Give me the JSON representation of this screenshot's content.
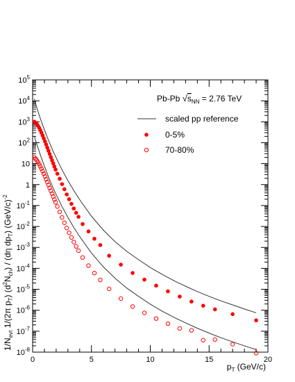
{
  "chart_data": {
    "type": "scatter",
    "xlabel": "p_T (GeV/c)",
    "ylabel": "1/N_evt 1/(2π p_T) (d²N_ch) / (dη dp_T) (GeV/c)^-2",
    "xlim": [
      0,
      20
    ],
    "ylim": [
      1e-08,
      100000.0
    ],
    "yscale": "log",
    "x_ticks": [
      0,
      5,
      10,
      15,
      20
    ],
    "y_ticks": [
      {
        "mant": "10",
        "exp": "-8",
        "v": 1e-08
      },
      {
        "mant": "10",
        "exp": "-7",
        "v": 1e-07
      },
      {
        "mant": "10",
        "exp": "-6",
        "v": 1e-06
      },
      {
        "mant": "10",
        "exp": "-5",
        "v": 1e-05
      },
      {
        "mant": "10",
        "exp": "-4",
        "v": 0.0001
      },
      {
        "mant": "10",
        "exp": "-3",
        "v": 0.001
      },
      {
        "mant": "10",
        "exp": "-2",
        "v": 0.01
      },
      {
        "mant": "10",
        "exp": "-1",
        "v": 0.1
      },
      {
        "mant": "1",
        "exp": "",
        "v": 1
      },
      {
        "mant": "10",
        "exp": "",
        "v": 10
      },
      {
        "mant": "10",
        "exp": "2",
        "v": 100.0
      },
      {
        "mant": "10",
        "exp": "3",
        "v": 1000.0
      },
      {
        "mant": "10",
        "exp": "4",
        "v": 10000.0
      },
      {
        "mant": "10",
        "exp": "5",
        "v": 100000.0
      }
    ],
    "grid": false,
    "legend_position": "top-right",
    "annotation": "Pb-Pb √s_NN = 2.76 TeV",
    "series": [
      {
        "name": "0-5%",
        "marker": "filled-circle",
        "color": "#ff0000",
        "points": [
          [
            0.15,
            1000
          ],
          [
            0.25,
            900
          ],
          [
            0.35,
            780
          ],
          [
            0.45,
            650
          ],
          [
            0.55,
            520
          ],
          [
            0.65,
            400
          ],
          [
            0.75,
            300
          ],
          [
            0.85,
            220
          ],
          [
            0.95,
            160
          ],
          [
            1.05,
            115
          ],
          [
            1.15,
            82
          ],
          [
            1.25,
            58
          ],
          [
            1.35,
            41
          ],
          [
            1.45,
            29
          ],
          [
            1.55,
            20.5
          ],
          [
            1.65,
            14.5
          ],
          [
            1.75,
            10.3
          ],
          [
            1.85,
            7.3
          ],
          [
            1.95,
            5.2
          ],
          [
            2.1,
            3.3
          ],
          [
            2.3,
            1.9
          ],
          [
            2.5,
            1.05
          ],
          [
            2.7,
            0.6
          ],
          [
            2.9,
            0.34
          ],
          [
            3.1,
            0.2
          ],
          [
            3.3,
            0.12
          ],
          [
            3.5,
            0.072
          ],
          [
            3.7,
            0.045
          ],
          [
            3.9,
            0.029
          ],
          [
            4.25,
            0.013
          ],
          [
            4.75,
            0.0058
          ],
          [
            5.25,
            0.0026
          ],
          [
            5.75,
            0.0013
          ],
          [
            6.5,
            0.0004
          ],
          [
            7.5,
            0.00015
          ],
          [
            8.5,
            6e-05
          ],
          [
            9.5,
            2.9e-05
          ],
          [
            10.5,
            1.5e-05
          ],
          [
            11.5,
            8e-06
          ],
          [
            12.5,
            4.5e-06
          ],
          [
            13.5,
            2.6e-06
          ],
          [
            14.5,
            1.65e-06
          ],
          [
            15.5,
            1.1e-06
          ],
          [
            17.0,
            6.5e-07
          ],
          [
            19.0,
            3.3e-07
          ]
        ]
      },
      {
        "name": "70-80%",
        "marker": "open-circle",
        "color": "#ff0000",
        "points": [
          [
            0.15,
            20
          ],
          [
            0.25,
            17
          ],
          [
            0.35,
            14.5
          ],
          [
            0.45,
            12
          ],
          [
            0.55,
            9.6
          ],
          [
            0.65,
            7.5
          ],
          [
            0.75,
            5.8
          ],
          [
            0.85,
            4.4
          ],
          [
            0.95,
            3.3
          ],
          [
            1.05,
            2.45
          ],
          [
            1.15,
            1.8
          ],
          [
            1.25,
            1.32
          ],
          [
            1.35,
            0.96
          ],
          [
            1.45,
            0.7
          ],
          [
            1.55,
            0.51
          ],
          [
            1.65,
            0.37
          ],
          [
            1.75,
            0.27
          ],
          [
            1.85,
            0.195
          ],
          [
            1.95,
            0.143
          ],
          [
            2.1,
            0.09
          ],
          [
            2.3,
            0.05
          ],
          [
            2.5,
            0.027
          ],
          [
            2.7,
            0.015
          ],
          [
            2.9,
            0.0085
          ],
          [
            3.1,
            0.005
          ],
          [
            3.3,
            0.003
          ],
          [
            3.5,
            0.0018
          ],
          [
            3.7,
            0.00112
          ],
          [
            3.9,
            0.0007
          ],
          [
            4.25,
            0.00033
          ],
          [
            4.75,
            0.000135
          ],
          [
            5.25,
            6e-05
          ],
          [
            5.75,
            2.8e-05
          ],
          [
            6.5,
            1.05e-05
          ],
          [
            7.5,
            3.6e-06
          ],
          [
            8.5,
            1.5e-06
          ],
          [
            9.5,
            7.5e-07
          ],
          [
            10.5,
            4e-07
          ],
          [
            11.5,
            2.3e-07
          ],
          [
            12.5,
            1.35e-07
          ],
          [
            13.5,
            1.1e-07
          ],
          [
            14.5,
            3.7e-08
          ],
          [
            15.5,
            4e-08
          ],
          [
            17.0,
            2.4e-08
          ],
          [
            19.0,
            9e-09
          ]
        ]
      },
      {
        "name": "scaled pp reference",
        "marker": "line",
        "color": "#333333",
        "points": [
          [
            0.15,
            12500
          ],
          [
            0.3,
            6000
          ],
          [
            0.5,
            2600
          ],
          [
            0.75,
            1000
          ],
          [
            1.0,
            420
          ],
          [
            1.25,
            180
          ],
          [
            1.5,
            82
          ],
          [
            1.75,
            38
          ],
          [
            2.0,
            19
          ],
          [
            2.5,
            5.1
          ],
          [
            3.0,
            1.55
          ],
          [
            3.5,
            0.52
          ],
          [
            4.0,
            0.19
          ],
          [
            5.0,
            0.031
          ],
          [
            6.0,
            0.0068
          ],
          [
            7.0,
            0.0019
          ],
          [
            8.0,
            0.00065
          ],
          [
            9.0,
            0.00026
          ],
          [
            10.0,
            0.00011
          ],
          [
            11.0,
            5.2e-05
          ],
          [
            12.0,
            2.6e-05
          ],
          [
            13.0,
            1.4e-05
          ],
          [
            14.0,
            7.8e-06
          ],
          [
            15.0,
            4.6e-06
          ],
          [
            16.0,
            2.8e-06
          ],
          [
            17.0,
            1.8e-06
          ],
          [
            18.0,
            1.15e-06
          ],
          [
            19.0,
            7.5e-07
          ]
        ]
      },
      {
        "name": "",
        "marker": "line",
        "color": "#333333",
        "points": [
          [
            0.15,
            200
          ],
          [
            0.3,
            105
          ],
          [
            0.5,
            48
          ],
          [
            0.75,
            18.5
          ],
          [
            1.0,
            7.6
          ],
          [
            1.25,
            3.25
          ],
          [
            1.5,
            1.45
          ],
          [
            1.75,
            0.67
          ],
          [
            2.0,
            0.33
          ],
          [
            2.5,
            0.09
          ],
          [
            3.0,
            0.027
          ],
          [
            3.5,
            0.009
          ],
          [
            4.0,
            0.0033
          ],
          [
            5.0,
            0.00054
          ],
          [
            6.0,
            0.00012
          ],
          [
            7.0,
            3.4e-05
          ],
          [
            8.0,
            1.15e-05
          ],
          [
            9.0,
            4.6e-06
          ],
          [
            10.0,
            1.95e-06
          ],
          [
            11.0,
            9.1e-07
          ],
          [
            12.0,
            4.6e-07
          ],
          [
            13.0,
            2.5e-07
          ],
          [
            14.0,
            1.38e-07
          ],
          [
            15.0,
            8.1e-08
          ],
          [
            16.0,
            4.9e-08
          ],
          [
            17.0,
            3.1e-08
          ],
          [
            18.0,
            2e-08
          ],
          [
            19.0,
            1.32e-08
          ]
        ]
      }
    ]
  }
}
